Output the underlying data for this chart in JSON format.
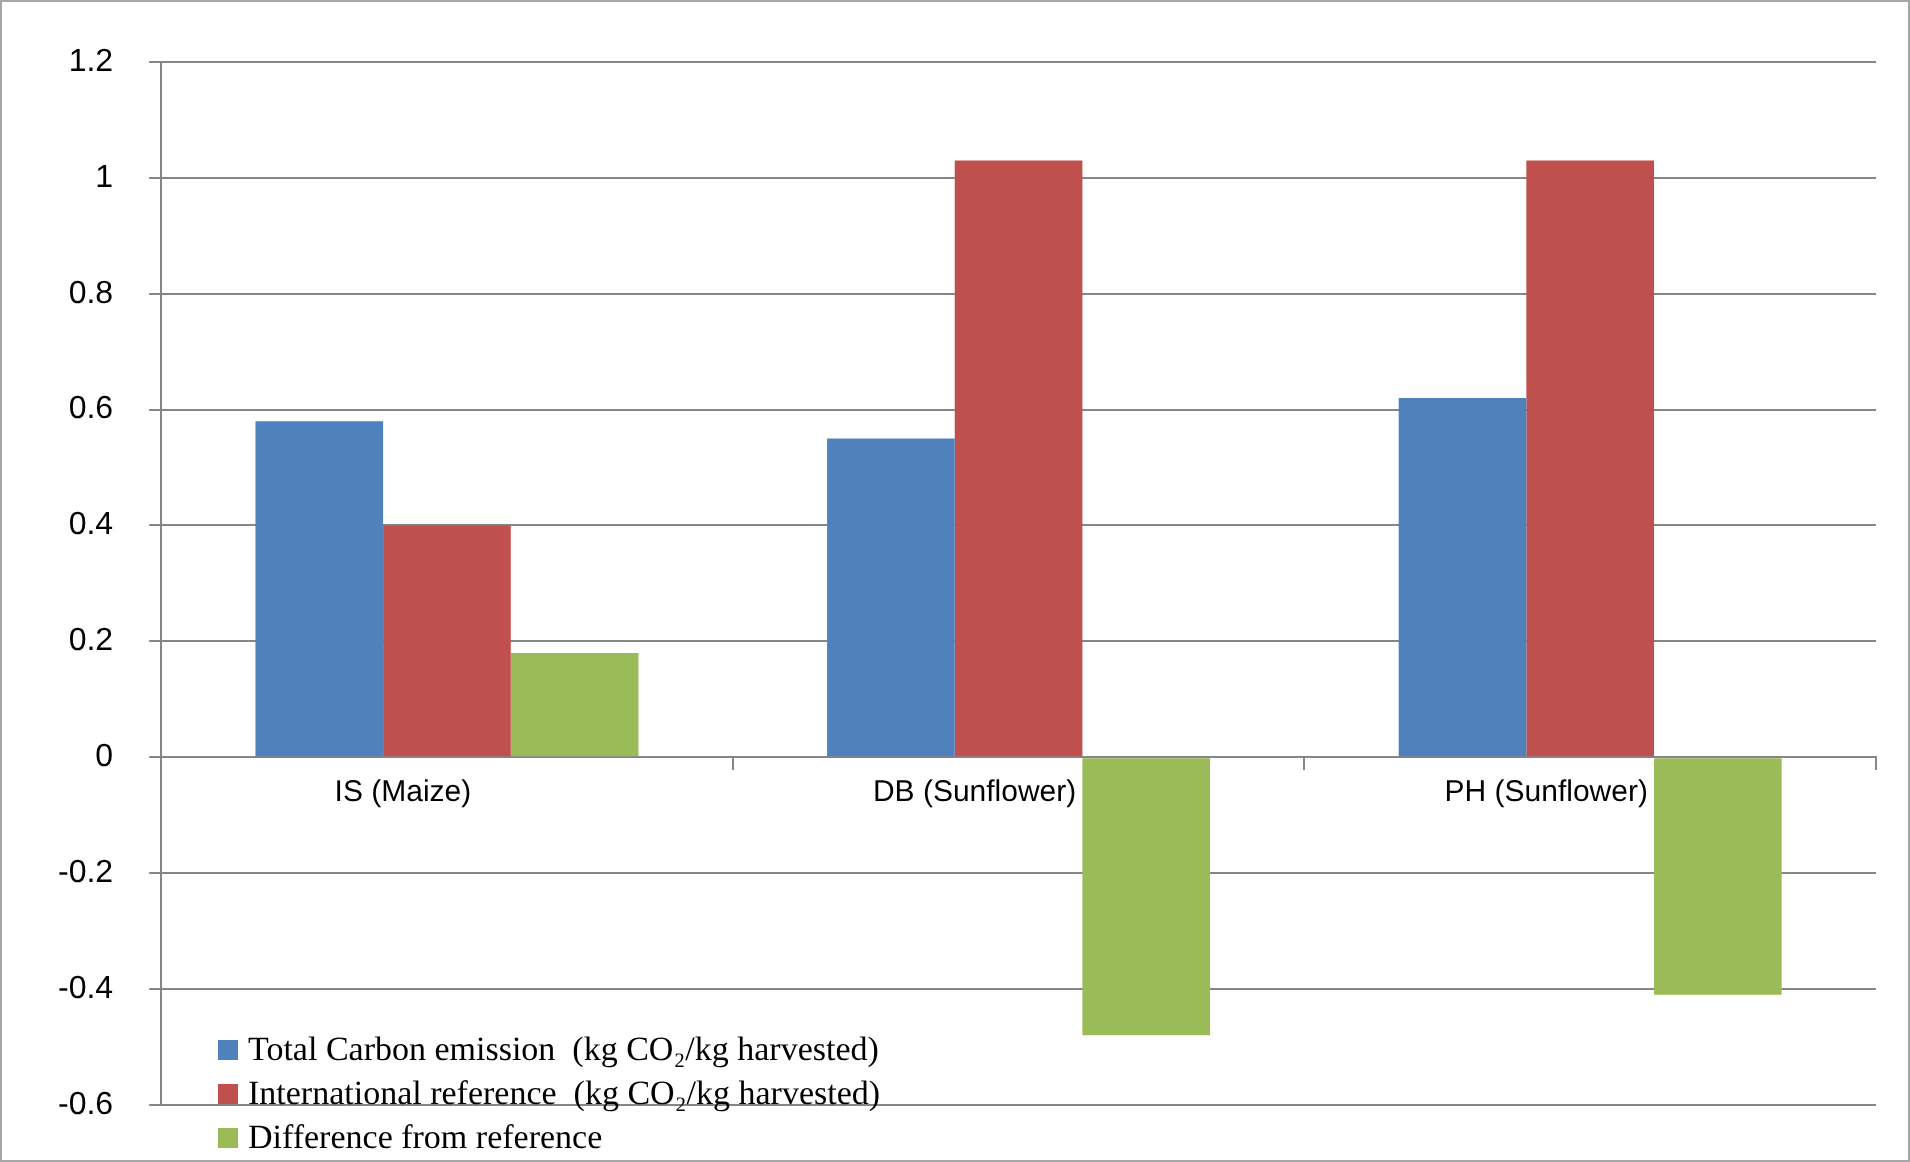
{
  "chart_data": {
    "type": "bar",
    "categories": [
      "IS (Maize)",
      "DB (Sunflower)",
      "PH (Sunflower)"
    ],
    "series": [
      {
        "name": "Total Carbon emission  (kg CO₂/kg harvested)",
        "color": "#4f81bd",
        "values": [
          0.58,
          0.55,
          0.62
        ]
      },
      {
        "name": "International reference  (kg CO₂/kg harvested)",
        "color": "#c0504d",
        "values": [
          0.4,
          1.03,
          1.03
        ]
      },
      {
        "name": "Difference from reference",
        "color": "#9bbb59",
        "values": [
          0.18,
          -0.48,
          -0.41
        ]
      }
    ],
    "ylim": [
      -0.6,
      1.2
    ],
    "yticks": [
      -0.6,
      -0.4,
      -0.2,
      0,
      0.2,
      0.4,
      0.6,
      0.8,
      1,
      1.2
    ],
    "grid": "y",
    "legend": "bottom left"
  }
}
